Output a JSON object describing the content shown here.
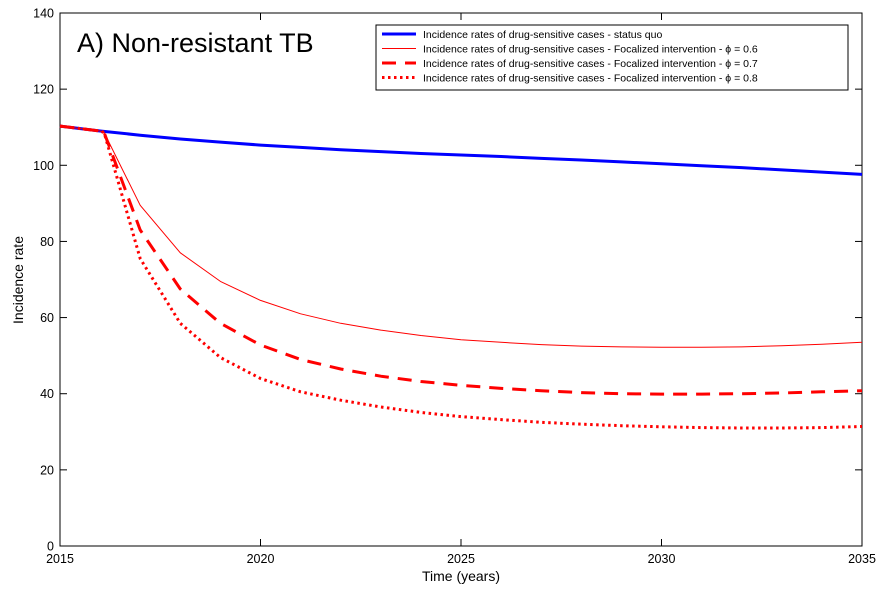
{
  "chart_data": {
    "type": "line",
    "title": "A) Non-resistant TB",
    "xlabel": "Time (years)",
    "ylabel": "Incidence rate",
    "xlim": [
      2015,
      2035
    ],
    "ylim": [
      0,
      140
    ],
    "xticks": [
      2015,
      2020,
      2025,
      2030,
      2035
    ],
    "yticks": [
      0,
      20,
      40,
      60,
      80,
      100,
      120,
      140
    ],
    "grid": false,
    "legend_position": "top-right",
    "series": [
      {
        "name": "Incidence rates of drug-sensitive cases - status quo",
        "color": "#0000ff",
        "style": "solid-thick",
        "x": [
          2015,
          2016,
          2017,
          2018,
          2019,
          2020,
          2021,
          2022,
          2023,
          2024,
          2025,
          2026,
          2027,
          2028,
          2029,
          2030,
          2031,
          2032,
          2033,
          2034,
          2035
        ],
        "y": [
          110.3,
          109.0,
          107.9,
          106.9,
          106.1,
          105.3,
          104.7,
          104.1,
          103.6,
          103.1,
          102.7,
          102.3,
          101.8,
          101.4,
          100.9,
          100.4,
          99.9,
          99.4,
          98.8,
          98.2,
          97.6
        ]
      },
      {
        "name": "Incidence rates of drug-sensitive cases - Focalized intervention - ϕ = 0.6",
        "color": "#ff0000",
        "style": "solid-thin",
        "x": [
          2015,
          2016,
          2016.1,
          2017,
          2018,
          2019,
          2020,
          2021,
          2022,
          2023,
          2024,
          2025,
          2026,
          2027,
          2028,
          2029,
          2030,
          2031,
          2032,
          2033,
          2034,
          2035
        ],
        "y": [
          110.3,
          109.0,
          108.6,
          89.5,
          77.0,
          69.5,
          64.5,
          61.0,
          58.5,
          56.7,
          55.3,
          54.2,
          53.5,
          52.9,
          52.5,
          52.3,
          52.2,
          52.2,
          52.3,
          52.6,
          53.0,
          53.5
        ]
      },
      {
        "name": "Incidence rates of drug-sensitive cases - Focalized intervention - ϕ = 0.7",
        "color": "#ff0000",
        "style": "dashed",
        "x": [
          2015,
          2016,
          2016.1,
          2017,
          2018,
          2019,
          2020,
          2021,
          2022,
          2023,
          2024,
          2025,
          2026,
          2027,
          2028,
          2029,
          2030,
          2031,
          2032,
          2033,
          2034,
          2035
        ],
        "y": [
          110.3,
          109.0,
          108.6,
          83.0,
          67.5,
          58.5,
          52.8,
          49.0,
          46.5,
          44.6,
          43.2,
          42.2,
          41.4,
          40.8,
          40.3,
          40.0,
          39.9,
          39.9,
          40.0,
          40.2,
          40.5,
          40.8
        ]
      },
      {
        "name": "Incidence rates of drug-sensitive cases - Focalized intervention - ϕ = 0.8",
        "color": "#ff0000",
        "style": "dotted",
        "x": [
          2015,
          2016,
          2016.1,
          2017,
          2018,
          2019,
          2020,
          2021,
          2022,
          2023,
          2024,
          2025,
          2026,
          2027,
          2028,
          2029,
          2030,
          2031,
          2032,
          2033,
          2034,
          2035
        ],
        "y": [
          110.3,
          109.0,
          108.6,
          75.5,
          58.5,
          49.5,
          44.0,
          40.5,
          38.3,
          36.5,
          35.1,
          34.0,
          33.2,
          32.5,
          32.0,
          31.6,
          31.3,
          31.1,
          31.0,
          31.0,
          31.1,
          31.4
        ]
      }
    ]
  }
}
